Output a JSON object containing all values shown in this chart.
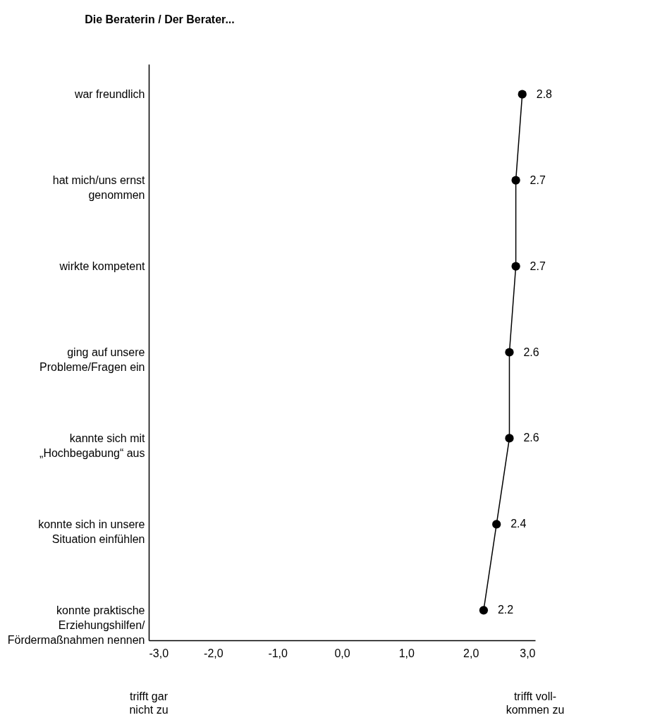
{
  "chart_data": {
    "type": "line",
    "orientation": "horizontal",
    "title": "Die Beraterin / Der Berater...",
    "categories": [
      "war freundlich",
      "hat mich/uns ernst\ngenommen",
      "wirkte kompetent",
      "ging auf unsere\nProbleme/Fragen ein",
      "kannte sich mit\n„Hochbegabung“ aus",
      "konnte sich in unsere\nSituation einfühlen",
      "konnte praktische\nErziehungshilfen/\nFördermaßnahmen nennen"
    ],
    "values": [
      2.8,
      2.7,
      2.7,
      2.6,
      2.6,
      2.4,
      2.2
    ],
    "color": "#000000",
    "marker": "circle",
    "line_style": "solid",
    "data_labels": true,
    "grid": false,
    "xlim": [
      -3,
      3
    ],
    "xticks": [
      {
        "value": -3,
        "label": "-3,0"
      },
      {
        "value": -2,
        "label": "-2,0"
      },
      {
        "value": -1,
        "label": "-1,0"
      },
      {
        "value": 0,
        "label": "0,0"
      },
      {
        "value": 1,
        "label": "1,0"
      },
      {
        "value": 2,
        "label": "2,0"
      },
      {
        "value": 3,
        "label": "3,0"
      }
    ],
    "annotations": [
      "trifft gar\nnicht zu",
      "trifft voll-\nkommen zu"
    ]
  }
}
